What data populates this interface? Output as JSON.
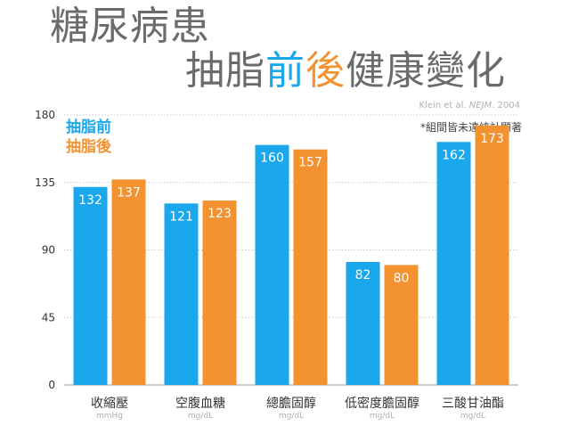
{
  "header": {
    "title_line1": "糖尿病患",
    "title_line2_part1": "抽脂",
    "title_line2_before": "前",
    "title_line2_after": "後",
    "title_line2_part2": "健康變化",
    "citation_prefix": "Klein et al. ",
    "citation_journal": "NEJM",
    "citation_suffix": ". 2004",
    "footnote": "*組間皆未達統計顯著"
  },
  "colors": {
    "before": "#1aa7ec",
    "after": "#f39230",
    "grid": "#cccccc",
    "axis_text": "#333333",
    "unit_text": "#b0b0b0"
  },
  "chart_data": {
    "type": "bar",
    "title": "糖尿病患抽脂前後健康變化",
    "categories": [
      "收縮壓",
      "空腹血糖",
      "總膽固醇",
      "低密度膽固醇",
      "三酸甘油酯"
    ],
    "units": [
      "mmHg",
      "mg/dL",
      "mg/dL",
      "mg/dL",
      "mg/dL"
    ],
    "series": [
      {
        "name": "抽脂前",
        "values": [
          132,
          121,
          160,
          82,
          162
        ]
      },
      {
        "name": "抽脂後",
        "values": [
          137,
          123,
          157,
          80,
          173
        ]
      }
    ],
    "ylim": [
      0,
      180
    ],
    "yticks": [
      0,
      45,
      90,
      135,
      180
    ],
    "grid": true,
    "legend": "top-left",
    "xlabel": "",
    "ylabel": ""
  }
}
